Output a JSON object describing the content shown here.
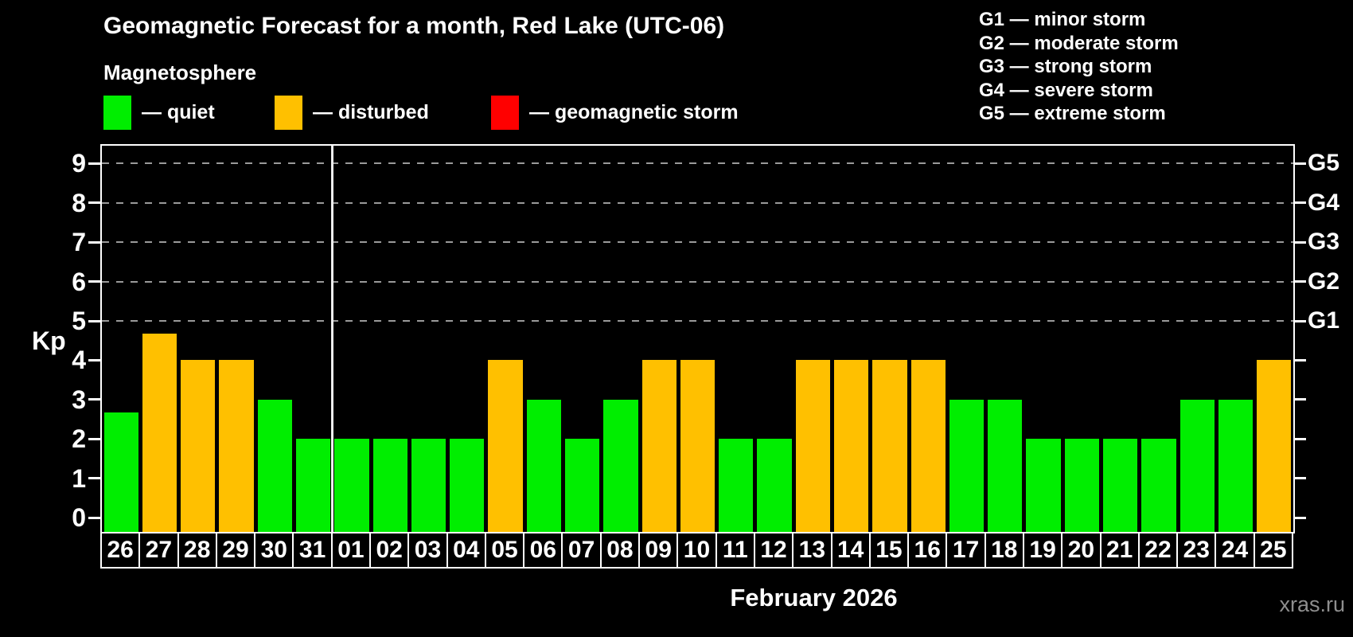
{
  "title": "Geomagnetic Forecast for a month, Red Lake (UTC-06)",
  "subtitle": "Magnetosphere",
  "legend": {
    "items": [
      {
        "name": "quiet",
        "label": "— quiet",
        "color": "#00ee00"
      },
      {
        "name": "disturbed",
        "label": "— disturbed",
        "color": "#ffc000"
      },
      {
        "name": "storm",
        "label": "— geomagnetic storm",
        "color": "#ff0000"
      }
    ]
  },
  "g_legend": {
    "lines": [
      "G1 — minor storm",
      "G2 — moderate storm",
      "G3 — strong storm",
      "G4 — severe storm",
      "G5 — extreme storm"
    ]
  },
  "axis": {
    "y_label": "Kp",
    "y_ticks": [
      0,
      1,
      2,
      3,
      4,
      5,
      6,
      7,
      8,
      9
    ],
    "right_labels": [
      {
        "value": 5,
        "label": "G1"
      },
      {
        "value": 6,
        "label": "G2"
      },
      {
        "value": 7,
        "label": "G3"
      },
      {
        "value": 8,
        "label": "G4"
      },
      {
        "value": 9,
        "label": "G5"
      }
    ]
  },
  "x_axis_label": "February 2026",
  "watermark": "xras.ru",
  "chart_data": {
    "type": "bar",
    "title": "Geomagnetic Forecast for a month, Red Lake (UTC-06)",
    "ylabel": "Kp",
    "xlabel": "February 2026",
    "ylim": [
      0,
      9
    ],
    "grid_values": [
      5,
      6,
      7,
      8,
      9
    ],
    "legend_position": "top-left",
    "month_separator_after": "31",
    "categories": [
      "26",
      "27",
      "28",
      "29",
      "30",
      "31",
      "01",
      "02",
      "03",
      "04",
      "05",
      "06",
      "07",
      "08",
      "09",
      "10",
      "11",
      "12",
      "13",
      "14",
      "15",
      "16",
      "17",
      "18",
      "19",
      "20",
      "21",
      "22",
      "23",
      "24",
      "25"
    ],
    "values": [
      2.67,
      4.67,
      4,
      4,
      3,
      2,
      2,
      2,
      2,
      2,
      4,
      3,
      2,
      3,
      4,
      4,
      2,
      2,
      4,
      4,
      4,
      4,
      3,
      3,
      2,
      2,
      2,
      2,
      3,
      3,
      4
    ],
    "statuses": [
      "quiet",
      "disturbed",
      "disturbed",
      "disturbed",
      "quiet",
      "quiet",
      "quiet",
      "quiet",
      "quiet",
      "quiet",
      "disturbed",
      "quiet",
      "quiet",
      "quiet",
      "disturbed",
      "disturbed",
      "quiet",
      "quiet",
      "disturbed",
      "disturbed",
      "disturbed",
      "disturbed",
      "quiet",
      "quiet",
      "quiet",
      "quiet",
      "quiet",
      "quiet",
      "quiet",
      "quiet",
      "disturbed"
    ],
    "status_colors": {
      "quiet": "#00ee00",
      "disturbed": "#ffc000",
      "storm": "#ff0000"
    }
  }
}
